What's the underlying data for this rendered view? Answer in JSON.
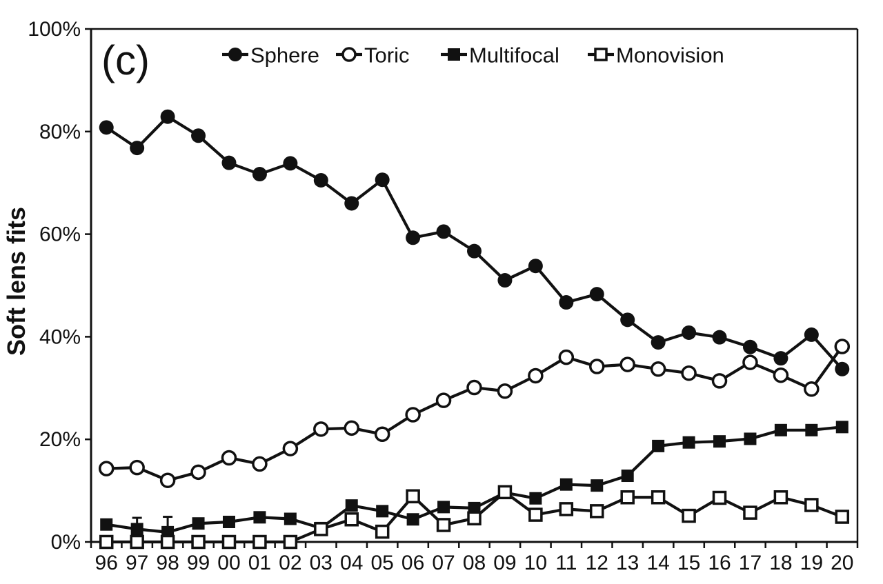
{
  "panel_label": "(c)",
  "chart_data": {
    "type": "line",
    "title": "",
    "xlabel": "",
    "ylabel": "Soft lens fits",
    "x": [
      "96",
      "97",
      "98",
      "99",
      "00",
      "01",
      "02",
      "03",
      "04",
      "05",
      "06",
      "07",
      "08",
      "09",
      "10",
      "11",
      "12",
      "13",
      "14",
      "15",
      "16",
      "17",
      "18",
      "19",
      "20"
    ],
    "ylim": [
      0,
      100
    ],
    "yticks": [
      0,
      20,
      40,
      60,
      80,
      100
    ],
    "ytick_suffix": "%",
    "grid": false,
    "legend_position": "top-inside",
    "line_color": "#111111",
    "background_color": "#ffffff",
    "series": [
      {
        "name": "Sphere",
        "marker": "filled-circle",
        "values": [
          80.8,
          76.8,
          82.9,
          79.2,
          73.9,
          71.7,
          73.8,
          70.5,
          66.0,
          70.6,
          59.3,
          60.5,
          56.7,
          51.0,
          53.8,
          46.7,
          48.3,
          43.3,
          38.9,
          40.8,
          39.9,
          38.0,
          35.8,
          40.4,
          33.7
        ]
      },
      {
        "name": "Toric",
        "marker": "open-circle",
        "values": [
          14.3,
          14.5,
          12.0,
          13.6,
          16.4,
          15.2,
          18.2,
          22.0,
          22.2,
          21.0,
          24.8,
          27.6,
          30.1,
          29.4,
          32.4,
          36.0,
          34.2,
          34.6,
          33.7,
          32.9,
          31.4,
          35.0,
          32.5,
          29.8,
          38.1
        ]
      },
      {
        "name": "Multifocal",
        "marker": "filled-square",
        "values": [
          3.4,
          2.5,
          1.9,
          3.6,
          3.9,
          4.8,
          4.5,
          2.7,
          7.1,
          6.0,
          4.4,
          6.8,
          6.6,
          9.6,
          8.5,
          11.2,
          11.0,
          12.9,
          18.7,
          19.4,
          19.6,
          20.1,
          21.8,
          21.8,
          22.4
        ],
        "error_bars": [
          {
            "x": "97",
            "top": 4.7
          },
          {
            "x": "98",
            "top": 4.9
          }
        ]
      },
      {
        "name": "Monovision",
        "marker": "open-square",
        "values": [
          0,
          0,
          0,
          0,
          0,
          0,
          0,
          2.5,
          4.4,
          2.0,
          8.9,
          3.3,
          4.6,
          9.7,
          5.3,
          6.4,
          6.0,
          8.7,
          8.7,
          5.1,
          8.6,
          5.7,
          8.7,
          7.2,
          4.9
        ]
      }
    ]
  }
}
